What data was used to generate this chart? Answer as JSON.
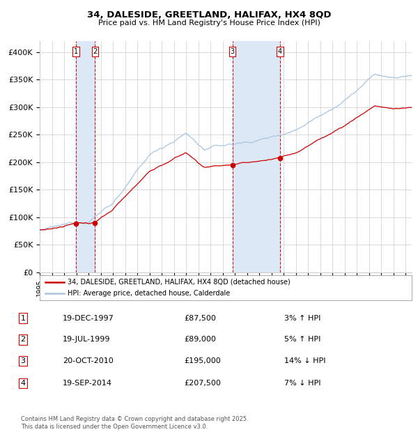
{
  "title_line1": "34, DALESIDE, GREETLAND, HALIFAX, HX4 8QD",
  "title_line2": "Price paid vs. HM Land Registry's House Price Index (HPI)",
  "xlim_start": 1995.0,
  "xlim_end": 2025.5,
  "ylim_min": 0,
  "ylim_max": 420000,
  "yticks": [
    0,
    50000,
    100000,
    150000,
    200000,
    250000,
    300000,
    350000,
    400000
  ],
  "ytick_labels": [
    "£0",
    "£50K",
    "£100K",
    "£150K",
    "£200K",
    "£250K",
    "£300K",
    "£350K",
    "£400K"
  ],
  "transactions": [
    {
      "num": 1,
      "date": "19-DEC-1997",
      "price": 87500,
      "pct": "3%",
      "dir": "↑",
      "date_float": 1997.96
    },
    {
      "num": 2,
      "date": "19-JUL-1999",
      "price": 89000,
      "pct": "5%",
      "dir": "↑",
      "date_float": 1999.54
    },
    {
      "num": 3,
      "date": "20-OCT-2010",
      "price": 195000,
      "pct": "14%",
      "dir": "↓",
      "date_float": 2010.8
    },
    {
      "num": 4,
      "date": "19-SEP-2014",
      "price": 207500,
      "pct": "7%",
      "dir": "↓",
      "date_float": 2014.71
    }
  ],
  "legend_label_red": "34, DALESIDE, GREETLAND, HALIFAX, HX4 8QD (detached house)",
  "legend_label_blue": "HPI: Average price, detached house, Calderdale",
  "footnote": "Contains HM Land Registry data © Crown copyright and database right 2025.\nThis data is licensed under the Open Government Licence v3.0.",
  "hpi_color": "#a8c4de",
  "price_color": "#cc0000",
  "marker_color": "#cc0000",
  "vline_color_red": "#cc0000",
  "shade_color": "#dce8f5",
  "background_color": "#ffffff",
  "grid_color": "#cccccc",
  "table_rows": [
    {
      "num": "1",
      "date": "19-DEC-1997",
      "price": "£87,500",
      "info": "3% ↑ HPI"
    },
    {
      "num": "2",
      "date": "19-JUL-1999",
      "price": "£89,000",
      "info": "5% ↑ HPI"
    },
    {
      "num": "3",
      "date": "20-OCT-2010",
      "price": "£195,000",
      "info": "14% ↓ HPI"
    },
    {
      "num": "4",
      "date": "19-SEP-2014",
      "price": "£207,500",
      "info": "7% ↓ HPI"
    }
  ]
}
